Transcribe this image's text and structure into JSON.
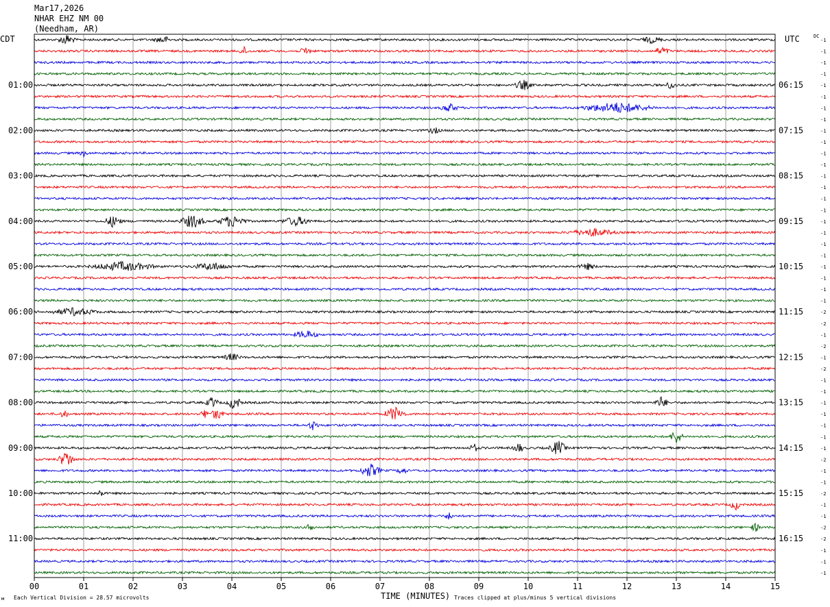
{
  "header": {
    "date": "Mar17,2026",
    "station": "NHAR EHZ NM 00",
    "location": "(Needham, AR)"
  },
  "left_timezone": "CDT",
  "right_timezone": "UTC",
  "dc_label": "DC",
  "footer": {
    "scale_note": "Each Vertical Division =   28.57 microvolts",
    "clip_note": "Traces clipped at plus/minus 5 vertical divisions",
    "corner_mark": "м"
  },
  "chart_data": {
    "type": "seismogram",
    "title": "Mar17,2026 NHAR EHZ NM 00 (Needham, AR)",
    "xlabel": "TIME (MINUTES)",
    "xlim": [
      0,
      15
    ],
    "x_ticks": [
      "00",
      "01",
      "02",
      "03",
      "04",
      "05",
      "06",
      "07",
      "08",
      "09",
      "10",
      "11",
      "12",
      "13",
      "14",
      "15"
    ],
    "trace_minutes": 15,
    "trace_count": 48,
    "trace_colors": [
      "#000000",
      "#ee0000",
      "#0000dd",
      "#006000"
    ],
    "left_hour_labels": [
      "01:00",
      "02:00",
      "03:00",
      "04:00",
      "05:00",
      "06:00",
      "07:00",
      "08:00",
      "09:00",
      "10:00",
      "11:00"
    ],
    "right_hour_labels": [
      "06:15",
      "07:15",
      "08:15",
      "09:15",
      "10:15",
      "11:15",
      "12:15",
      "13:15",
      "14:15",
      "15:15",
      "16:15"
    ],
    "dc_offsets": [
      "-1",
      "-1",
      "-1",
      "-1",
      "-1",
      "-1",
      "-1",
      "-1",
      "-1",
      "-1",
      "-1",
      "-1",
      "-1",
      "-1",
      "-1",
      "-1",
      "-1",
      "-1",
      "-1",
      "-1",
      "-1",
      "-1",
      "-1",
      "-1",
      "-2",
      "-2",
      "-1",
      "-2",
      "-1",
      "-2",
      "-1",
      "-1",
      "-1",
      "-1",
      "-1",
      "-1",
      "-1",
      "-2",
      "-1",
      "-1",
      "-2",
      "-1",
      "-1",
      "-2",
      "-2",
      "-1",
      "-1",
      "-1"
    ],
    "events": [
      {
        "trace": 0,
        "minute": 0.65,
        "amp": 7,
        "dur": 0.3
      },
      {
        "trace": 0,
        "minute": 2.6,
        "amp": 5,
        "dur": 0.3
      },
      {
        "trace": 0,
        "minute": 12.5,
        "amp": 4,
        "dur": 0.4
      },
      {
        "trace": 1,
        "minute": 4.25,
        "amp": 5,
        "dur": 0.15
      },
      {
        "trace": 1,
        "minute": 5.5,
        "amp": 5,
        "dur": 0.2
      },
      {
        "trace": 1,
        "minute": 12.7,
        "amp": 5,
        "dur": 0.3
      },
      {
        "trace": 4,
        "minute": 9.9,
        "amp": 7,
        "dur": 0.3
      },
      {
        "trace": 4,
        "minute": 12.9,
        "amp": 5,
        "dur": 0.2
      },
      {
        "trace": 6,
        "minute": 8.4,
        "amp": 6,
        "dur": 0.3
      },
      {
        "trace": 6,
        "minute": 11.8,
        "amp": 7,
        "dur": 1.6
      },
      {
        "trace": 8,
        "minute": 8.1,
        "amp": 4,
        "dur": 0.2
      },
      {
        "trace": 10,
        "minute": 1.0,
        "amp": 4,
        "dur": 0.1
      },
      {
        "trace": 16,
        "minute": 1.6,
        "amp": 8,
        "dur": 0.3
      },
      {
        "trace": 16,
        "minute": 3.2,
        "amp": 9,
        "dur": 0.5
      },
      {
        "trace": 16,
        "minute": 4.0,
        "amp": 8,
        "dur": 0.6
      },
      {
        "trace": 16,
        "minute": 5.3,
        "amp": 6,
        "dur": 0.6
      },
      {
        "trace": 17,
        "minute": 11.3,
        "amp": 5,
        "dur": 1.0
      },
      {
        "trace": 20,
        "minute": 1.8,
        "amp": 6,
        "dur": 1.4
      },
      {
        "trace": 20,
        "minute": 3.6,
        "amp": 5,
        "dur": 0.8
      },
      {
        "trace": 20,
        "minute": 11.2,
        "amp": 4,
        "dur": 0.3
      },
      {
        "trace": 24,
        "minute": 0.8,
        "amp": 5,
        "dur": 1.0
      },
      {
        "trace": 26,
        "minute": 5.5,
        "amp": 5,
        "dur": 0.5
      },
      {
        "trace": 28,
        "minute": 4.0,
        "amp": 5,
        "dur": 0.3
      },
      {
        "trace": 32,
        "minute": 3.6,
        "amp": 7,
        "dur": 0.2
      },
      {
        "trace": 32,
        "minute": 4.05,
        "amp": 9,
        "dur": 0.25
      },
      {
        "trace": 32,
        "minute": 12.7,
        "amp": 8,
        "dur": 0.2
      },
      {
        "trace": 33,
        "minute": 0.6,
        "amp": 6,
        "dur": 0.1
      },
      {
        "trace": 33,
        "minute": 3.45,
        "amp": 6,
        "dur": 0.1
      },
      {
        "trace": 33,
        "minute": 3.7,
        "amp": 8,
        "dur": 0.2
      },
      {
        "trace": 33,
        "minute": 7.3,
        "amp": 10,
        "dur": 0.4
      },
      {
        "trace": 34,
        "minute": 5.65,
        "amp": 7,
        "dur": 0.15
      },
      {
        "trace": 35,
        "minute": 13.0,
        "amp": 10,
        "dur": 0.2
      },
      {
        "trace": 36,
        "minute": 8.9,
        "amp": 6,
        "dur": 0.1
      },
      {
        "trace": 36,
        "minute": 9.8,
        "amp": 7,
        "dur": 0.15
      },
      {
        "trace": 36,
        "minute": 10.6,
        "amp": 10,
        "dur": 0.3
      },
      {
        "trace": 37,
        "minute": 0.65,
        "amp": 11,
        "dur": 0.3
      },
      {
        "trace": 38,
        "minute": 6.8,
        "amp": 9,
        "dur": 0.4
      },
      {
        "trace": 38,
        "minute": 7.45,
        "amp": 5,
        "dur": 0.15
      },
      {
        "trace": 40,
        "minute": 1.35,
        "amp": 4,
        "dur": 0.1
      },
      {
        "trace": 41,
        "minute": 14.2,
        "amp": 7,
        "dur": 0.15
      },
      {
        "trace": 42,
        "minute": 8.4,
        "amp": 5,
        "dur": 0.1
      },
      {
        "trace": 43,
        "minute": 5.6,
        "amp": 6,
        "dur": 0.1
      },
      {
        "trace": 43,
        "minute": 14.6,
        "amp": 6,
        "dur": 0.1
      }
    ]
  }
}
